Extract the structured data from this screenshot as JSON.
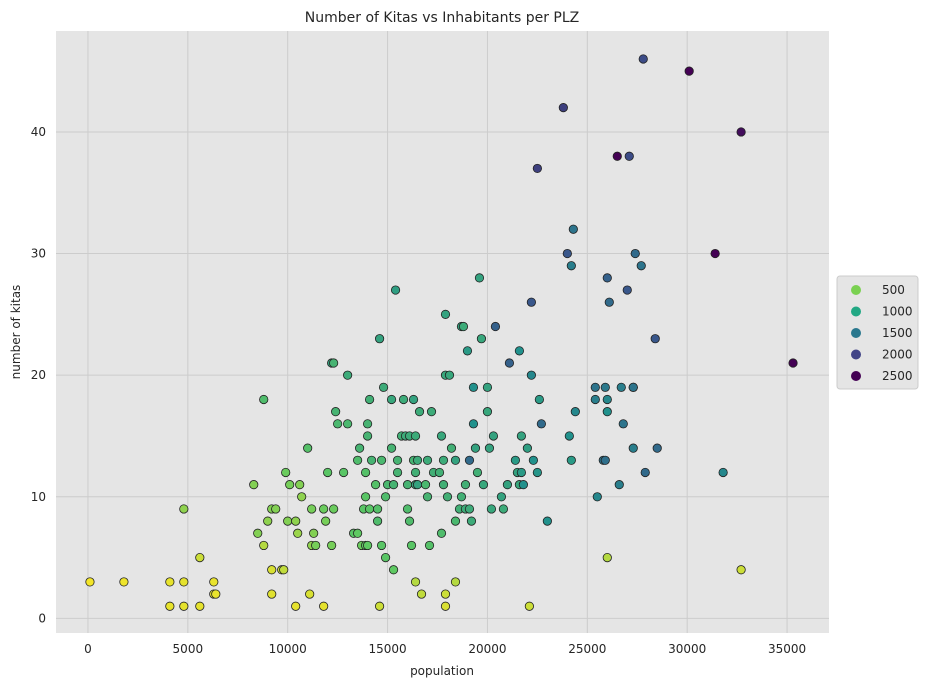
{
  "chart_data": {
    "type": "scatter",
    "title": "Number of Kitas vs Inhabitants per PLZ",
    "xlabel": "population",
    "ylabel": "number of kitas",
    "xlim": [
      -1600,
      37100
    ],
    "ylim": [
      -1.2,
      48.3
    ],
    "x_ticks": [
      0,
      5000,
      10000,
      15000,
      20000,
      25000,
      30000,
      35000
    ],
    "y_ticks": [
      0,
      10,
      20,
      30,
      40
    ],
    "grid": true,
    "legend_placement": "right",
    "colormap": "viridis_r",
    "color_range": [
      0,
      2600
    ],
    "legend": [
      {
        "label": "500",
        "value": 500,
        "color": "#7ad151"
      },
      {
        "label": "1000",
        "value": 1000,
        "color": "#22a884"
      },
      {
        "label": "1500",
        "value": 1500,
        "color": "#2a788e"
      },
      {
        "label": "2000",
        "value": 2000,
        "color": "#414487"
      },
      {
        "label": "2500",
        "value": 2500,
        "color": "#440154"
      }
    ],
    "points": [
      [
        100,
        3,
        40
      ],
      [
        1800,
        3,
        60
      ],
      [
        4100,
        3,
        90
      ],
      [
        4100,
        1,
        90
      ],
      [
        4800,
        3,
        100
      ],
      [
        4800,
        1,
        100
      ],
      [
        4800,
        9,
        450
      ],
      [
        5600,
        5,
        200
      ],
      [
        5600,
        1,
        100
      ],
      [
        6300,
        3,
        80
      ],
      [
        6300,
        2,
        80
      ],
      [
        6400,
        2,
        80
      ],
      [
        8300,
        11,
        500
      ],
      [
        8500,
        7,
        500
      ],
      [
        8800,
        18,
        800
      ],
      [
        8800,
        6,
        300
      ],
      [
        9000,
        8,
        450
      ],
      [
        9200,
        4,
        150
      ],
      [
        9200,
        2,
        120
      ],
      [
        9200,
        9,
        500
      ],
      [
        9400,
        9,
        500
      ],
      [
        9700,
        4,
        200
      ],
      [
        9800,
        4,
        250
      ],
      [
        9900,
        12,
        600
      ],
      [
        10000,
        8,
        500
      ],
      [
        10100,
        11,
        550
      ],
      [
        10400,
        1,
        100
      ],
      [
        10400,
        8,
        450
      ],
      [
        10500,
        7,
        400
      ],
      [
        10600,
        11,
        500
      ],
      [
        10700,
        10,
        450
      ],
      [
        11000,
        14,
        750
      ],
      [
        11100,
        2,
        150
      ],
      [
        11200,
        9,
        550
      ],
      [
        11200,
        6,
        450
      ],
      [
        11300,
        7,
        500
      ],
      [
        11400,
        6,
        550
      ],
      [
        11800,
        1,
        100
      ],
      [
        11800,
        9,
        600
      ],
      [
        11900,
        8,
        550
      ],
      [
        12000,
        12,
        700
      ],
      [
        12200,
        6,
        550
      ],
      [
        12200,
        21,
        1100
      ],
      [
        12300,
        21,
        900
      ],
      [
        12300,
        9,
        600
      ],
      [
        12400,
        17,
        900
      ],
      [
        12500,
        16,
        850
      ],
      [
        12800,
        12,
        700
      ],
      [
        13000,
        20,
        1000
      ],
      [
        13000,
        16,
        850
      ],
      [
        13300,
        7,
        700
      ],
      [
        13500,
        13,
        800
      ],
      [
        13500,
        7,
        650
      ],
      [
        13600,
        14,
        900
      ],
      [
        13700,
        6,
        600
      ],
      [
        13800,
        9,
        700
      ],
      [
        13900,
        12,
        750
      ],
      [
        13900,
        10,
        700
      ],
      [
        13900,
        6,
        650
      ],
      [
        14000,
        16,
        900
      ],
      [
        14000,
        15,
        900
      ],
      [
        14000,
        6,
        650
      ],
      [
        14100,
        18,
        950
      ],
      [
        14100,
        9,
        700
      ],
      [
        14200,
        13,
        900
      ],
      [
        14400,
        11,
        750
      ],
      [
        14500,
        8,
        800
      ],
      [
        14500,
        9,
        750
      ],
      [
        14600,
        23,
        1100
      ],
      [
        14600,
        1,
        200
      ],
      [
        14700,
        13,
        850
      ],
      [
        14700,
        6,
        700
      ],
      [
        14800,
        19,
        1000
      ],
      [
        14900,
        10,
        800
      ],
      [
        14900,
        5,
        700
      ],
      [
        15000,
        11,
        850
      ],
      [
        15200,
        18,
        1050
      ],
      [
        15200,
        14,
        900
      ],
      [
        15300,
        11,
        900
      ],
      [
        15300,
        4,
        650
      ],
      [
        15400,
        27,
        1150
      ],
      [
        15500,
        13,
        900
      ],
      [
        15500,
        12,
        900
      ],
      [
        15700,
        15,
        950
      ],
      [
        15800,
        18,
        1000
      ],
      [
        15900,
        15,
        1000
      ],
      [
        16000,
        11,
        900
      ],
      [
        16000,
        9,
        800
      ],
      [
        16100,
        8,
        800
      ],
      [
        16100,
        15,
        1000
      ],
      [
        16200,
        6,
        700
      ],
      [
        16300,
        13,
        900
      ],
      [
        16300,
        18,
        1100
      ],
      [
        16400,
        15,
        1000
      ],
      [
        16400,
        12,
        950
      ],
      [
        16400,
        11,
        1050
      ],
      [
        16400,
        3,
        300
      ],
      [
        16500,
        11,
        1100
      ],
      [
        16500,
        13,
        1000
      ],
      [
        16600,
        17,
        1000
      ],
      [
        16700,
        2,
        250
      ],
      [
        16900,
        11,
        850
      ],
      [
        17000,
        13,
        1000
      ],
      [
        17000,
        10,
        900
      ],
      [
        17100,
        6,
        750
      ],
      [
        17200,
        17,
        1000
      ],
      [
        17300,
        12,
        950
      ],
      [
        17600,
        12,
        950
      ],
      [
        17700,
        7,
        800
      ],
      [
        17700,
        15,
        1050
      ],
      [
        17800,
        11,
        950
      ],
      [
        17800,
        13,
        1000
      ],
      [
        17900,
        25,
        1100
      ],
      [
        17900,
        20,
        1050
      ],
      [
        17900,
        2,
        200
      ],
      [
        17900,
        1,
        150
      ],
      [
        18000,
        10,
        950
      ],
      [
        18100,
        20,
        1050
      ],
      [
        18200,
        14,
        950
      ],
      [
        18400,
        3,
        300
      ],
      [
        18400,
        8,
        850
      ],
      [
        18400,
        13,
        1100
      ],
      [
        18600,
        9,
        950
      ],
      [
        18700,
        10,
        950
      ],
      [
        18700,
        24,
        1100
      ],
      [
        18800,
        24,
        1000
      ],
      [
        18900,
        11,
        950
      ],
      [
        18900,
        9,
        1000
      ],
      [
        19000,
        22,
        1200
      ],
      [
        19100,
        9,
        1000
      ],
      [
        19100,
        13,
        1700
      ],
      [
        19200,
        8,
        1000
      ],
      [
        19300,
        19,
        1300
      ],
      [
        19300,
        16,
        1300
      ],
      [
        19400,
        14,
        1100
      ],
      [
        19500,
        12,
        950
      ],
      [
        19600,
        28,
        1100
      ],
      [
        19700,
        23,
        1050
      ],
      [
        19800,
        11,
        1050
      ],
      [
        20000,
        19,
        1100
      ],
      [
        20000,
        17,
        1050
      ],
      [
        20100,
        14,
        1100
      ],
      [
        20200,
        9,
        1050
      ],
      [
        20300,
        15,
        1100
      ],
      [
        20400,
        24,
        1800
      ],
      [
        20700,
        10,
        1100
      ],
      [
        20800,
        9,
        1000
      ],
      [
        21000,
        11,
        1100
      ],
      [
        21100,
        21,
        1800
      ],
      [
        21400,
        13,
        1200
      ],
      [
        21500,
        12,
        1100
      ],
      [
        21600,
        11,
        1050
      ],
      [
        21600,
        22,
        1300
      ],
      [
        21700,
        12,
        1200
      ],
      [
        21700,
        15,
        1100
      ],
      [
        21800,
        11,
        1300
      ],
      [
        22000,
        14,
        1150
      ],
      [
        22100,
        1,
        200
      ],
      [
        22200,
        20,
        1400
      ],
      [
        22200,
        26,
        1900
      ],
      [
        22300,
        13,
        1300
      ],
      [
        22500,
        37,
        2100
      ],
      [
        22500,
        12,
        1250
      ],
      [
        22600,
        18,
        1200
      ],
      [
        22700,
        16,
        1700
      ],
      [
        23000,
        8,
        1300
      ],
      [
        23800,
        42,
        2100
      ],
      [
        24000,
        30,
        1900
      ],
      [
        24100,
        15,
        1300
      ],
      [
        24200,
        13,
        1200
      ],
      [
        24200,
        29,
        1500
      ],
      [
        24300,
        32,
        1600
      ],
      [
        24400,
        17,
        1400
      ],
      [
        25400,
        19,
        1600
      ],
      [
        25400,
        18,
        1500
      ],
      [
        25500,
        10,
        1400
      ],
      [
        25800,
        13,
        1600
      ],
      [
        25900,
        19,
        1550
      ],
      [
        25900,
        13,
        1650
      ],
      [
        26000,
        17,
        1300
      ],
      [
        26000,
        18,
        1400
      ],
      [
        26000,
        28,
        1800
      ],
      [
        26000,
        5,
        300
      ],
      [
        26100,
        26,
        1700
      ],
      [
        26500,
        38,
        2600
      ],
      [
        26600,
        11,
        1500
      ],
      [
        26700,
        19,
        1500
      ],
      [
        26800,
        16,
        1600
      ],
      [
        27000,
        27,
        1900
      ],
      [
        27100,
        38,
        2000
      ],
      [
        27300,
        14,
        1500
      ],
      [
        27300,
        19,
        1600
      ],
      [
        27300,
        19,
        1600
      ],
      [
        27400,
        30,
        1700
      ],
      [
        27700,
        29,
        1600
      ],
      [
        27800,
        46,
        2000
      ],
      [
        27900,
        12,
        1700
      ],
      [
        28400,
        23,
        1900
      ],
      [
        28500,
        14,
        1700
      ],
      [
        30100,
        45,
        2600
      ],
      [
        31400,
        30,
        2600
      ],
      [
        31800,
        12,
        1400
      ],
      [
        32700,
        40,
        2500
      ],
      [
        32700,
        4,
        200
      ],
      [
        35300,
        21,
        2600
      ]
    ]
  }
}
